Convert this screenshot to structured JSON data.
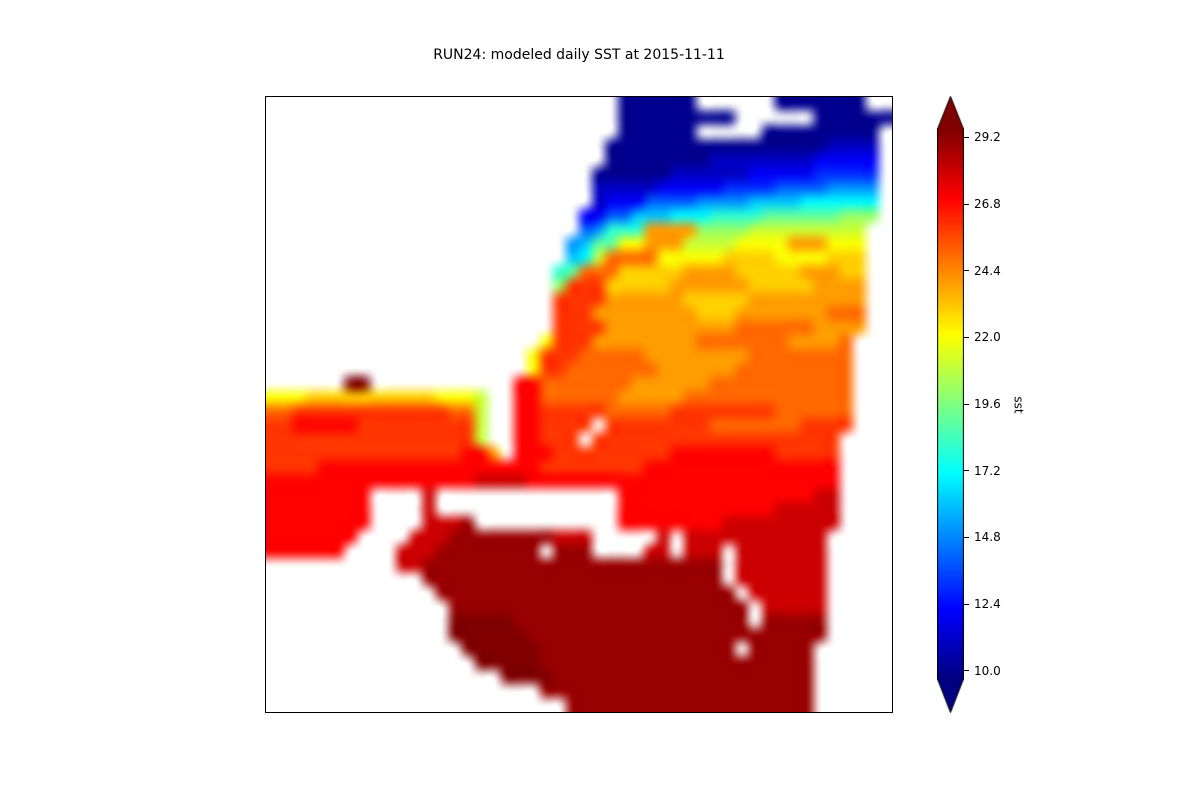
{
  "title": "RUN24: modeled daily SST at 2015-11-11",
  "figure": {
    "background": "#ffffff",
    "land_color": "#ffffff"
  },
  "chart_data": {
    "type": "heatmap",
    "title": "RUN24: modeled daily SST at 2015-11-11",
    "run": "RUN24",
    "variable": "sst",
    "date": "2015-11-11",
    "colormap": "jet",
    "vmin": 9.7,
    "vmax": 29.5,
    "colorbar": {
      "label": "sst",
      "ticks": [
        10.0,
        12.4,
        14.8,
        17.2,
        19.6,
        22.0,
        24.4,
        26.8,
        29.2
      ],
      "extend": "both",
      "over_color": "#800000",
      "under_color": "#000080"
    },
    "grid": {
      "cols": 48,
      "rows": 44,
      "encoding": "char '.' = land or outside model domain (white); chars 0-9 then a-k = sea surface temperature from 10 C (char 0) to 30 C (char k) in 1 C steps",
      "rows_data": [
        "...........................000000......0000000..",
        "...........................000000000......000000",
        "...........................000000.....000000000.",
        "..........................000000000000000001111.",
        "..........................000000001111111122222.",
        ".........................0000001111112222233333.",
        ".........................1111122222333344445555.",
        ".........................1222444455556666777777.",
        "........................22446667778888999999aaa.",
        "........................45888eeeeaaaabbbbbbbbb..",
        ".......................5699cceeebbbbcccceeeccc..",
        ".......................67bffffcccccddddccccddd..",
        "......................89fffdddddeeeedddddeeedd..",
        "......................agggdddddeeeeeedddddeeee..",
        "......................ggggeeeeeedddddeeeeeeeee..",
        "......................gggeeeeeeeedddeeeeeeefff..",
        "......................ggggeeeeeeeeeeffffffeeee..",
        ".....................cgggeeeeeeeefffffffeeeef...",
        "....................cgggfffffeeeeeeeeffffffff...",
        "....................cggfffffffeeeeeefffffffff...",
        "......kk...........hhfffffffeeeeeefffffffffff...",
        "cccddddddddddcccb..hhffffffeeeeefffffffffffff...",
        "ffggggggggggggffb..hhgggggfffffggggggggffffff...",
        "gghhhhhgggggggggb..hhgggg.ggggggggfffffffgggg...",
        "ggggggggggggggggb..hhggg.ggggggggggggggggggg....",
        "ggggggggggggggghhe.hhhggggggggghhhhhhhhggggg....",
        "gggghhhhhhhhhhhhhhhhhgggggggghhhhhhhhhhhhhhh....",
        "hhhhhhhhhhhhhhhhiiiihhhhhhhhhhhhhhhhhhhhhhhh....",
        "hhhhhhhh....i..............hhhhhhhhhhhhhhhii....",
        "hhhhhhhh....i..............hhhhhhhhhhhhiiiii....",
        "hhhhhhhh....iiij...........hhhhhhhhiiiiiiiii....",
        "hhhhhhh....iiijjjjjjjjiii.....i.iiiiiiiiiii.....",
        "hhhhhh....iiijjjjjjjj.jjj....ii.iii.iiiiiii.....",
        "..........iijjjjjjjjjjjjjjjjjjjjjjj.iiiiiii.....",
        "............jjjjjjjjjjjjjjjjjjjjjjj.iiiiiii.....",
        ".............jjjjjjjjjjjjjjjjjjjjjjj.iiiiii.....",
        "..............jjjjjjjjjjjjjjjjjjjjjjj.iiiii.....",
        "..............kkkkkjjjjjjjjjjjjjjjjjj.jjjjj.....",
        "..............kkkkkkjjjjjjjjjjjjjjjjjjjjjjj.....",
        "...............kkkkkkjjjjjjjjjjjjjjj.jjjjj......",
        "................kkkkkjjjjjjjjjjjjjjjjjjjjj......",
        "..................kkkkjjjjjjjjjjjjjjjjjjjj......",
        ".....................jjjjjjjjjjjjjjjjjjjjj......",
        ".......................jjjjjjjjjjjjjjjjjjj......"
      ]
    }
  }
}
